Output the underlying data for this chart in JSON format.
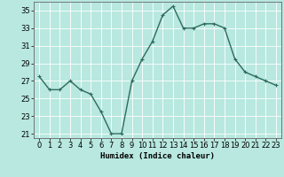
{
  "x": [
    0,
    1,
    2,
    3,
    4,
    5,
    6,
    7,
    8,
    9,
    10,
    11,
    12,
    13,
    14,
    15,
    16,
    17,
    18,
    19,
    20,
    21,
    22,
    23
  ],
  "y": [
    27.5,
    26.0,
    26.0,
    27.0,
    26.0,
    25.5,
    23.5,
    21.0,
    21.0,
    27.0,
    29.5,
    31.5,
    34.5,
    35.5,
    33.0,
    33.0,
    33.5,
    33.5,
    33.0,
    29.5,
    28.0,
    27.5,
    27.0,
    26.5
  ],
  "line_color": "#2d6b5e",
  "marker": "+",
  "bg_color": "#b8e8e0",
  "grid_color": "#d8f0ec",
  "xlabel": "Humidex (Indice chaleur)",
  "xlim": [
    -0.5,
    23.5
  ],
  "ylim": [
    20.5,
    36.0
  ],
  "yticks": [
    21,
    23,
    25,
    27,
    29,
    31,
    33,
    35
  ],
  "xticks": [
    0,
    1,
    2,
    3,
    4,
    5,
    6,
    7,
    8,
    9,
    10,
    11,
    12,
    13,
    14,
    15,
    16,
    17,
    18,
    19,
    20,
    21,
    22,
    23
  ],
  "xlabel_fontsize": 6.5,
  "tick_fontsize": 6.0,
  "linewidth": 1.0,
  "markersize": 3.5
}
